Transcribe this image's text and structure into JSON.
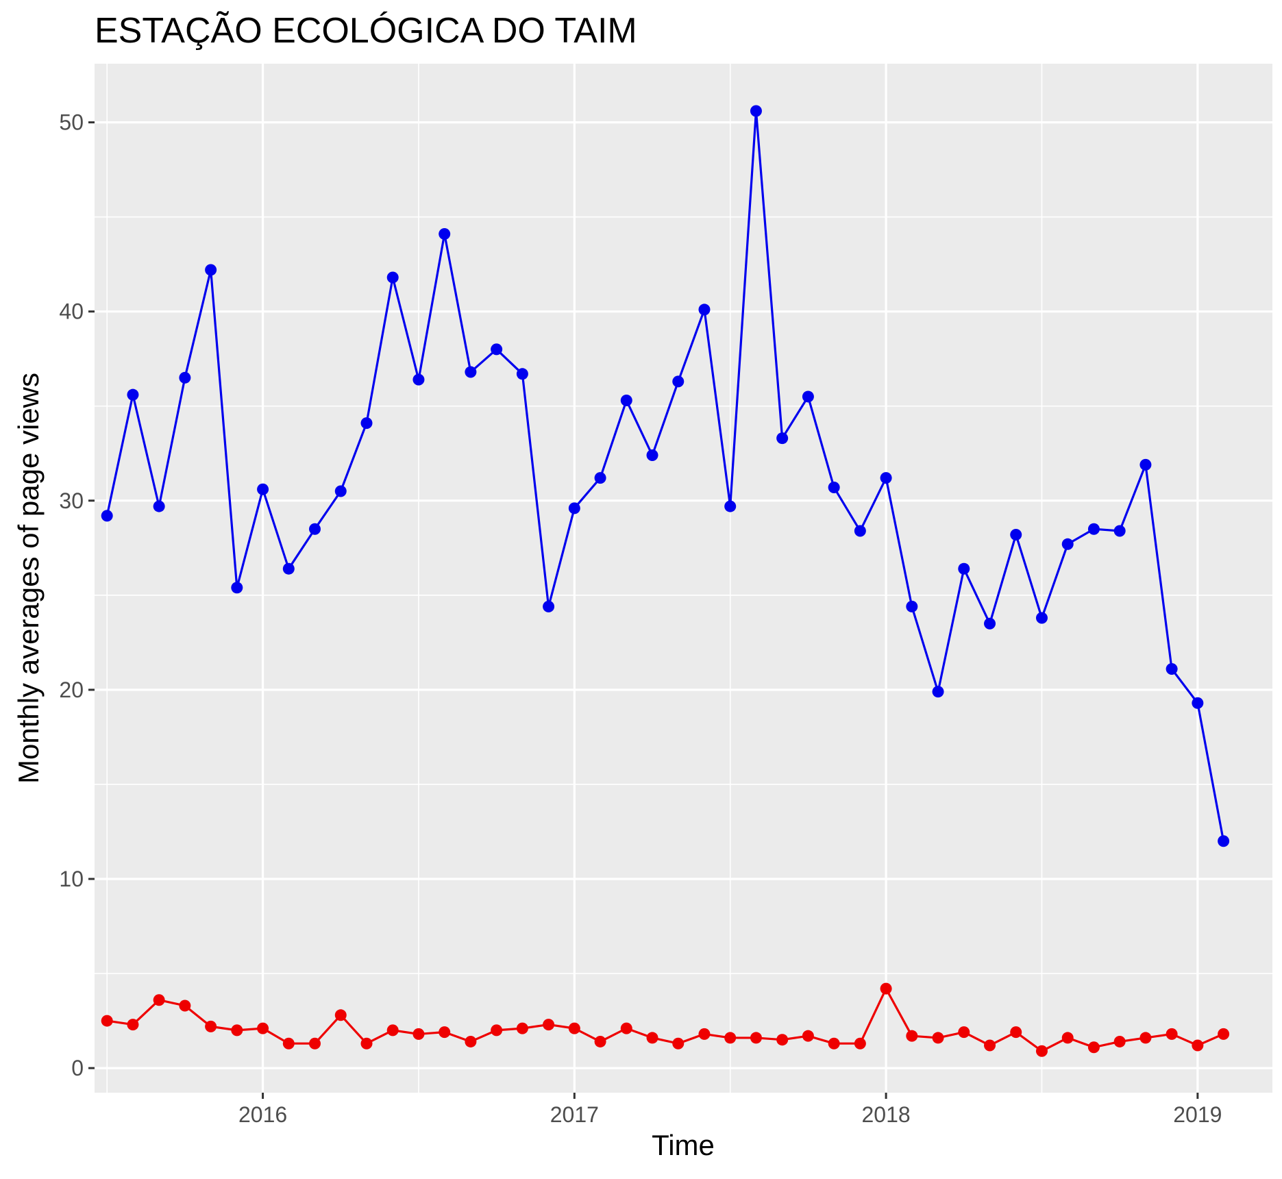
{
  "chart_data": {
    "type": "line",
    "title": "ESTAÇÃO ECOLÓGICA DO TAIM",
    "xlabel": "Time",
    "ylabel": "Monthly averages of page views",
    "xlim": [
      2015.46,
      2019.24
    ],
    "ylim": [
      -1.3,
      53.1
    ],
    "x_ticks": [
      2016,
      2017,
      2018,
      2019
    ],
    "x_tick_labels": [
      "2016",
      "2017",
      "2018",
      "2019"
    ],
    "y_ticks": [
      0,
      10,
      20,
      30,
      40,
      50
    ],
    "y_tick_labels": [
      "0",
      "10",
      "20",
      "30",
      "40",
      "50"
    ],
    "grid": true,
    "legend": "none",
    "panel_background": "#ebebeb",
    "x": [
      2015.5,
      2015.583,
      2015.667,
      2015.75,
      2015.833,
      2015.917,
      2016.0,
      2016.083,
      2016.167,
      2016.25,
      2016.333,
      2016.417,
      2016.5,
      2016.583,
      2016.667,
      2016.75,
      2016.833,
      2016.917,
      2017.0,
      2017.083,
      2017.167,
      2017.25,
      2017.333,
      2017.417,
      2017.5,
      2017.583,
      2017.667,
      2017.75,
      2017.833,
      2017.917,
      2018.0,
      2018.083,
      2018.167,
      2018.25,
      2018.333,
      2018.417,
      2018.5,
      2018.583,
      2018.667,
      2018.75,
      2018.833,
      2018.917,
      2019.0,
      2019.083
    ],
    "series": [
      {
        "color": "#0000ee",
        "values": [
          29.2,
          35.6,
          29.7,
          36.5,
          42.2,
          25.4,
          30.6,
          26.4,
          28.5,
          30.5,
          34.1,
          41.8,
          36.4,
          44.1,
          36.8,
          38.0,
          36.7,
          24.4,
          29.6,
          31.2,
          35.3,
          32.4,
          36.3,
          40.1,
          29.7,
          50.6,
          33.3,
          35.5,
          30.7,
          28.4,
          31.2,
          24.4,
          19.9,
          26.4,
          23.5,
          28.2,
          23.8,
          27.7,
          28.5,
          28.4,
          31.9,
          21.1,
          19.3,
          12.0
        ]
      },
      {
        "color": "#ee0000",
        "values": [
          2.5,
          2.3,
          3.6,
          3.3,
          2.2,
          2.0,
          2.1,
          1.3,
          1.3,
          2.8,
          1.3,
          2.0,
          1.8,
          1.9,
          1.4,
          2.0,
          2.1,
          2.3,
          2.1,
          1.4,
          2.1,
          1.6,
          1.3,
          1.8,
          1.6,
          1.6,
          1.5,
          1.7,
          1.3,
          1.3,
          4.2,
          1.7,
          1.6,
          1.9,
          1.2,
          1.9,
          0.9,
          1.6,
          1.1,
          1.4,
          1.6,
          1.8,
          1.2,
          1.8
        ]
      }
    ]
  }
}
